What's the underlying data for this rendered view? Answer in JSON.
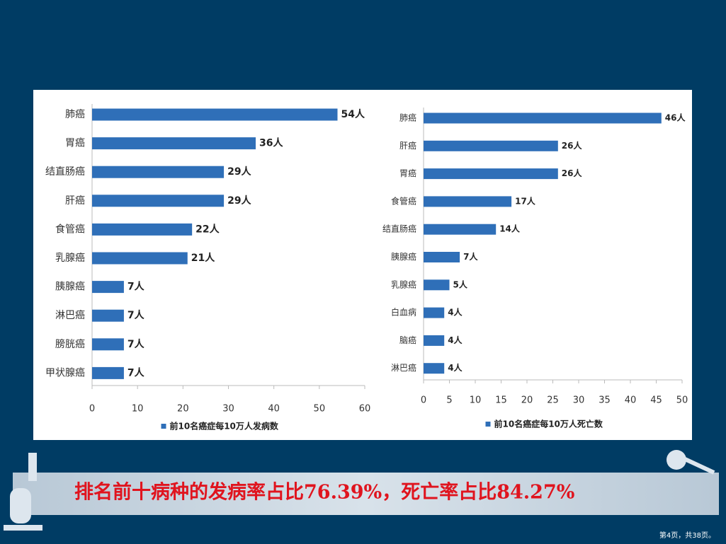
{
  "chart_data": [
    {
      "type": "hbar",
      "categories": [
        "肺癌",
        "胃癌",
        "结直肠癌",
        "肝癌",
        "食管癌",
        "乳腺癌",
        "胰腺癌",
        "淋巴癌",
        "膀胱癌",
        "甲状腺癌"
      ],
      "series": [
        {
          "name": "前10名癌症每10万人发病数",
          "color": "#2f6fb8",
          "values": [
            54,
            36,
            29,
            29,
            22,
            21,
            7,
            7,
            7,
            7
          ],
          "value_labels": [
            "54人",
            "36人",
            "29人",
            "29人",
            "22人",
            "21人",
            "7人",
            "7人",
            "7人",
            "7人"
          ]
        }
      ],
      "xlim": [
        0,
        60
      ],
      "xticks": [
        0,
        10,
        20,
        30,
        40,
        50,
        60
      ],
      "grid": false,
      "legend": "bottom"
    },
    {
      "type": "hbar",
      "categories": [
        "肺癌",
        "肝癌",
        "胃癌",
        "食管癌",
        "结直肠癌",
        "胰腺癌",
        "乳腺癌",
        "白血病",
        "脑癌",
        "淋巴癌"
      ],
      "series": [
        {
          "name": "前10名癌症每10万人死亡数",
          "color": "#2f6fb8",
          "values": [
            46,
            26,
            26,
            17,
            14,
            7,
            5,
            4,
            4,
            4
          ],
          "value_labels": [
            "46人",
            "26人",
            "26人",
            "17人",
            "14人",
            "7人",
            "5人",
            "4人",
            "4人",
            "4人"
          ]
        }
      ],
      "xlim": [
        0,
        50
      ],
      "xticks": [
        0,
        5,
        10,
        15,
        20,
        25,
        30,
        35,
        40,
        45,
        50
      ],
      "grid": false,
      "legend": "bottom"
    }
  ],
  "caption": "排名前十病种的发病率占比76.39%，死亡率占比84.27%",
  "page_label": "第4页，共38页。"
}
